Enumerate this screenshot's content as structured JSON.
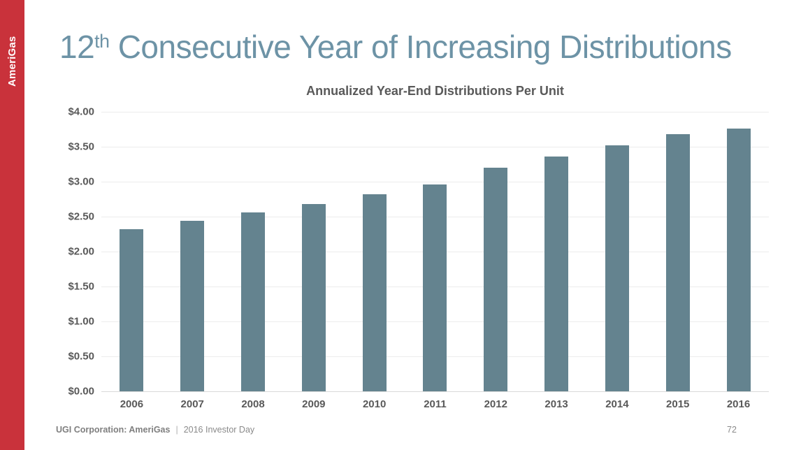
{
  "sidebar": {
    "brand": "AmeriGas"
  },
  "header": {
    "title_number": "12",
    "title_superscript": "th",
    "title_rest": " Consecutive Year of Increasing Distributions"
  },
  "chart_data": {
    "type": "bar",
    "title": "Annualized Year-End Distributions Per Unit",
    "categories": [
      "2006",
      "2007",
      "2008",
      "2009",
      "2010",
      "2011",
      "2012",
      "2013",
      "2014",
      "2015",
      "2016"
    ],
    "values": [
      2.32,
      2.44,
      2.56,
      2.68,
      2.82,
      2.96,
      3.2,
      3.36,
      3.52,
      3.68,
      3.76
    ],
    "xlabel": "",
    "ylabel": "",
    "ylim": [
      0,
      4.0
    ],
    "ytick_step": 0.5,
    "yticks": [
      "$4.00",
      "$3.50",
      "$3.00",
      "$2.50",
      "$2.00",
      "$1.50",
      "$1.00",
      "$0.50",
      "$0.00"
    ],
    "grid": true,
    "legend": "none",
    "bar_color": "#64838f"
  },
  "footer": {
    "company": "UGI Corporation: AmeriGas",
    "separator": "|",
    "event": "2016 Investor Day",
    "page_number": "72"
  },
  "colors": {
    "accent_red": "#c9323b",
    "bar": "#64838f",
    "title_text": "#6d93a6",
    "axis_text": "#595959",
    "footer_text": "#8a8a8a"
  }
}
